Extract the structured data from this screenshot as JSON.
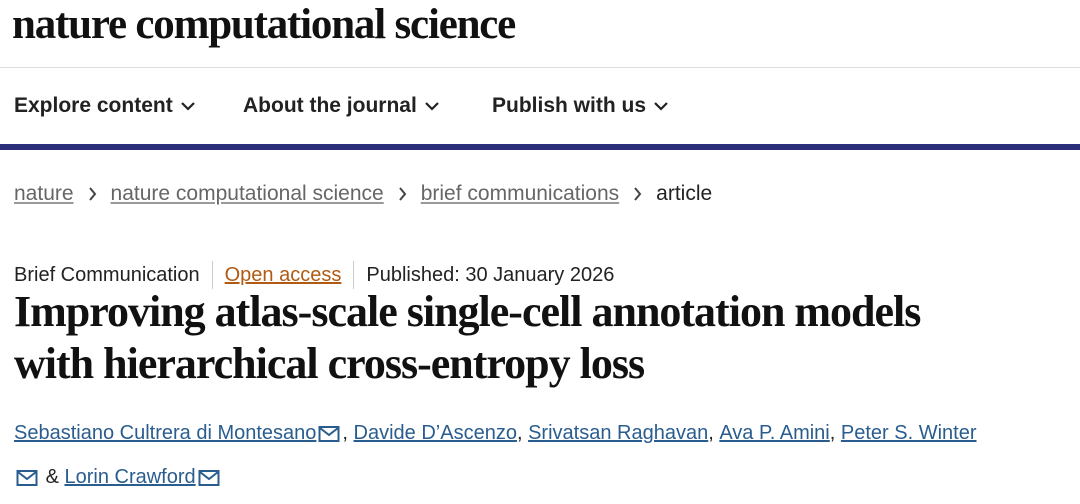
{
  "header": {
    "journal": "nature computational science"
  },
  "nav": {
    "items": [
      "Explore content",
      "About the journal",
      "Publish with us"
    ]
  },
  "breadcrumb": {
    "items": [
      "nature",
      "nature computational science",
      "brief communications",
      "article"
    ]
  },
  "article": {
    "type": "Brief Communication",
    "access": "Open access",
    "published": "Published: 30 January 2026",
    "title_lines": [
      "Improving atlas-scale single-cell annotation models",
      "with hierarchical cross-entropy loss"
    ],
    "authors": [
      "Sebastiano Cultrera di Montesano",
      "Davide D’Ascenzo",
      "Srivatsan Raghavan",
      "Ava P. Amini",
      "Peter S. Winter",
      "Lorin Crawford"
    ],
    "separator": ",",
    "conjunction": "&"
  }
}
